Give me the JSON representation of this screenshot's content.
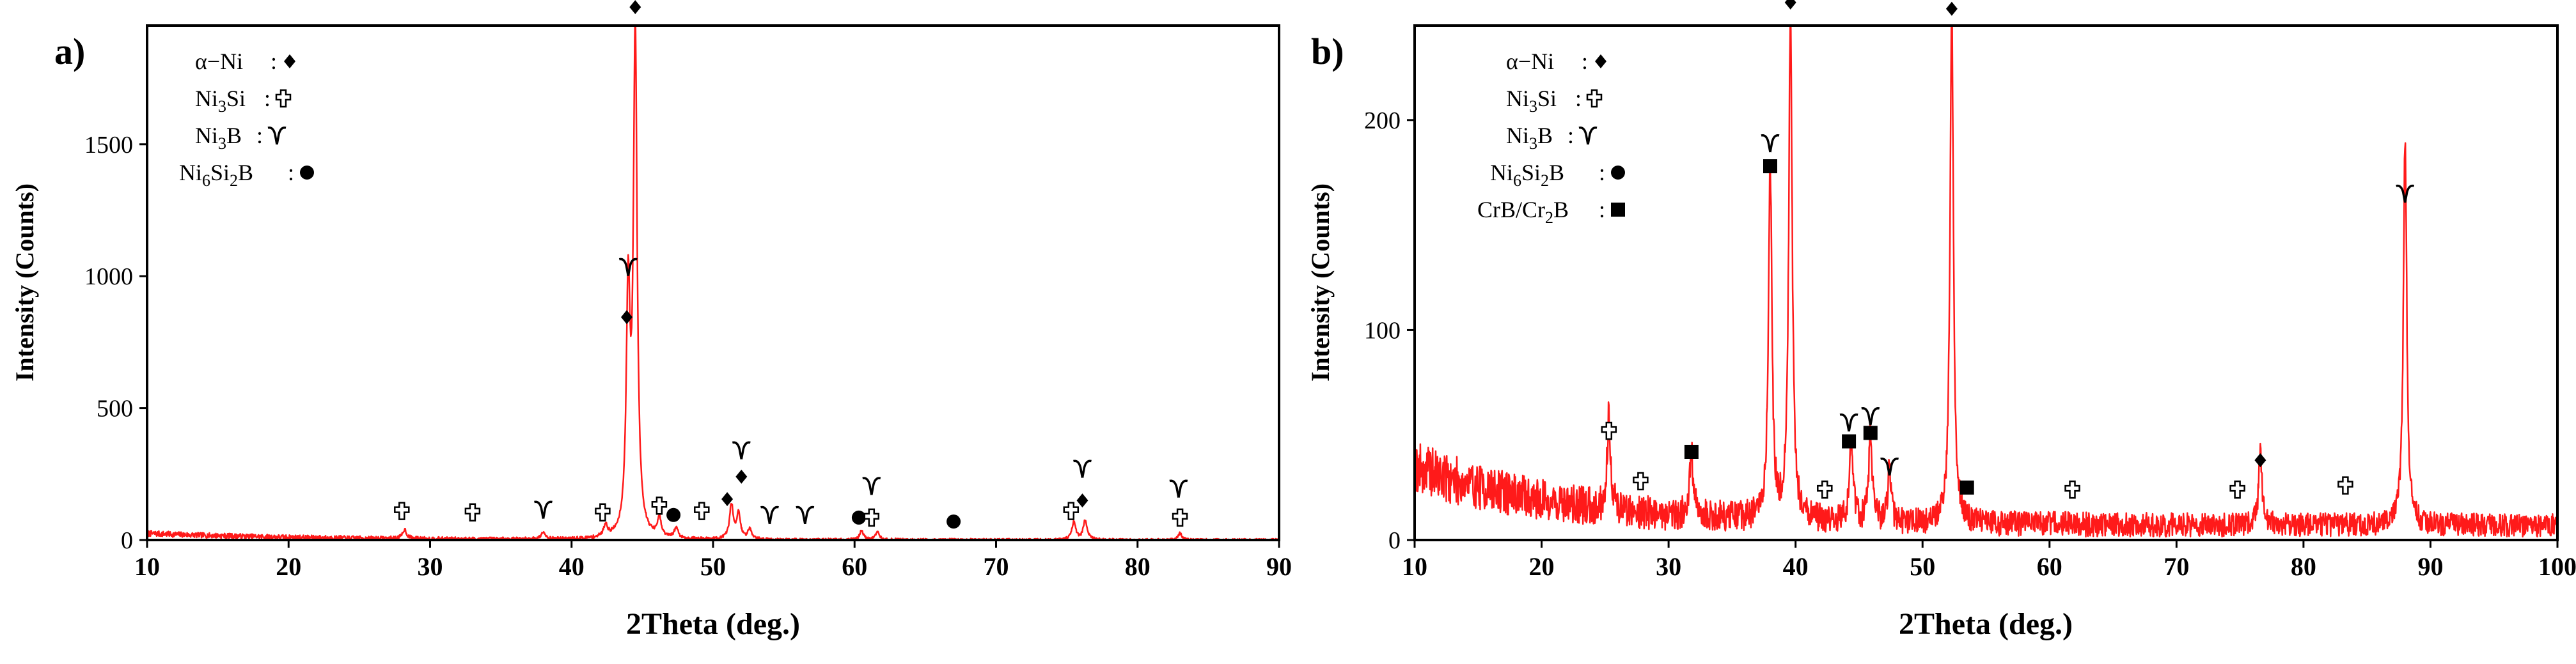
{
  "colors": {
    "pattern": "#ff1a1a",
    "axis": "#000000",
    "marker": "#000000"
  },
  "chart_data": [
    {
      "type": "line",
      "panel_label": "a)",
      "xlabel": "2Theta (deg.)",
      "ylabel": "Intensity (Counts)",
      "xlim": [
        10,
        90
      ],
      "ylim": [
        0,
        1950
      ],
      "xticks": [
        10,
        20,
        30,
        40,
        50,
        60,
        70,
        80,
        90
      ],
      "yticks": [
        0,
        500,
        1000,
        1500
      ],
      "grid": false,
      "background": {
        "baseline": 0,
        "noise": 8,
        "extra_low_angle": 25
      },
      "peaks": [
        {
          "x": 28.2,
          "y": 35
        },
        {
          "x": 38.0,
          "y": 30
        },
        {
          "x": 42.4,
          "y": 45
        },
        {
          "x": 44.0,
          "y": 900
        },
        {
          "x": 44.5,
          "y": 1900
        },
        {
          "x": 46.2,
          "y": 70
        },
        {
          "x": 47.4,
          "y": 40
        },
        {
          "x": 51.3,
          "y": 130
        },
        {
          "x": 51.8,
          "y": 95
        },
        {
          "x": 52.6,
          "y": 40
        },
        {
          "x": 60.5,
          "y": 35
        },
        {
          "x": 61.6,
          "y": 30
        },
        {
          "x": 75.5,
          "y": 70
        },
        {
          "x": 76.3,
          "y": 75
        },
        {
          "x": 83.0,
          "y": 25
        }
      ],
      "legend": {
        "position": "top-left",
        "entries": [
          {
            "phase": "α−Ni",
            "symbol": "diamond"
          },
          {
            "phase": "Ni3Si",
            "symbol": "cross"
          },
          {
            "phase": "Ni3B",
            "symbol": "gamma"
          },
          {
            "phase": "Ni6Si2B",
            "symbol": "circle"
          }
        ]
      },
      "phase_markers": [
        {
          "phase": "α−Ni",
          "symbol": "diamond",
          "x": 44.5,
          "y": 2020
        },
        {
          "phase": "Ni3B",
          "symbol": "gamma",
          "x": 44.0,
          "y": 1035
        },
        {
          "phase": "α−Ni",
          "symbol": "diamond",
          "x": 43.9,
          "y": 845
        },
        {
          "phase": "Ni3Si",
          "symbol": "cross",
          "x": 28.0,
          "y": 110
        },
        {
          "phase": "Ni3Si",
          "symbol": "cross",
          "x": 33.0,
          "y": 105
        },
        {
          "phase": "Ni3B",
          "symbol": "gamma",
          "x": 38.0,
          "y": 115
        },
        {
          "phase": "Ni3Si",
          "symbol": "cross",
          "x": 42.2,
          "y": 105
        },
        {
          "phase": "Ni3Si",
          "symbol": "cross",
          "x": 46.2,
          "y": 130
        },
        {
          "phase": "Ni6Si2B",
          "symbol": "circle",
          "x": 47.2,
          "y": 95
        },
        {
          "phase": "Ni3Si",
          "symbol": "cross",
          "x": 49.2,
          "y": 110
        },
        {
          "phase": "α−Ni",
          "symbol": "diamond",
          "x": 51.0,
          "y": 155
        },
        {
          "phase": "α−Ni",
          "symbol": "diamond",
          "x": 52.0,
          "y": 240
        },
        {
          "phase": "Ni3B",
          "symbol": "gamma",
          "x": 52.0,
          "y": 340
        },
        {
          "phase": "Ni3B",
          "symbol": "gamma",
          "x": 54.0,
          "y": 95
        },
        {
          "phase": "Ni3B",
          "symbol": "gamma",
          "x": 56.5,
          "y": 95
        },
        {
          "phase": "Ni6Si2B",
          "symbol": "circle",
          "x": 60.3,
          "y": 85
        },
        {
          "phase": "Ni3Si",
          "symbol": "cross",
          "x": 61.2,
          "y": 85
        },
        {
          "phase": "Ni3B",
          "symbol": "gamma",
          "x": 61.2,
          "y": 205
        },
        {
          "phase": "Ni6Si2B",
          "symbol": "circle",
          "x": 67.0,
          "y": 70
        },
        {
          "phase": "Ni3Si",
          "symbol": "cross",
          "x": 75.3,
          "y": 110
        },
        {
          "phase": "α−Ni",
          "symbol": "diamond",
          "x": 76.1,
          "y": 150
        },
        {
          "phase": "Ni3B",
          "symbol": "gamma",
          "x": 76.1,
          "y": 270
        },
        {
          "phase": "Ni3B",
          "symbol": "gamma",
          "x": 82.9,
          "y": 195
        },
        {
          "phase": "Ni3Si",
          "symbol": "cross",
          "x": 83.0,
          "y": 85
        }
      ]
    },
    {
      "type": "line",
      "panel_label": "b)",
      "xlabel": "2Theta (deg.)",
      "ylabel": "Intensity (Counts)",
      "xlim": [
        10,
        100
      ],
      "ylim": [
        0,
        245
      ],
      "xticks": [
        10,
        20,
        30,
        40,
        50,
        60,
        70,
        80,
        90,
        100
      ],
      "yticks": [
        0,
        100,
        200
      ],
      "grid": false,
      "background": {
        "baseline": 7,
        "noise": 9,
        "extra_low_angle": 28
      },
      "peaks": [
        {
          "x": 25.3,
          "y": 45
        },
        {
          "x": 31.8,
          "y": 30
        },
        {
          "x": 38.0,
          "y": 170
        },
        {
          "x": 39.6,
          "y": 245
        },
        {
          "x": 44.4,
          "y": 40
        },
        {
          "x": 45.9,
          "y": 42
        },
        {
          "x": 47.4,
          "y": 25
        },
        {
          "x": 52.3,
          "y": 245
        },
        {
          "x": 76.6,
          "y": 35
        },
        {
          "x": 88.0,
          "y": 185
        }
      ],
      "legend": {
        "position": "top-left",
        "entries": [
          {
            "phase": "α−Ni",
            "symbol": "diamond"
          },
          {
            "phase": "Ni3Si",
            "symbol": "cross"
          },
          {
            "phase": "Ni3B",
            "symbol": "gamma"
          },
          {
            "phase": "Ni6Si2B",
            "symbol": "circle"
          },
          {
            "phase": "CrB/Cr2B",
            "symbol": "square"
          }
        ]
      },
      "phase_markers": [
        {
          "phase": "α−Ni",
          "symbol": "diamond",
          "x": 39.6,
          "y": 256
        },
        {
          "phase": "α−Ni",
          "symbol": "diamond",
          "x": 52.3,
          "y": 253
        },
        {
          "phase": "Ni3B",
          "symbol": "gamma",
          "x": 38.0,
          "y": 189
        },
        {
          "phase": "CrB/Cr2B",
          "symbol": "square",
          "x": 38.0,
          "y": 178
        },
        {
          "phase": "Ni3B",
          "symbol": "gamma",
          "x": 88.0,
          "y": 165
        },
        {
          "phase": "Ni3Si",
          "symbol": "cross",
          "x": 25.3,
          "y": 52
        },
        {
          "phase": "Ni3Si",
          "symbol": "cross",
          "x": 27.8,
          "y": 28
        },
        {
          "phase": "CrB/Cr2B",
          "symbol": "square",
          "x": 31.8,
          "y": 42
        },
        {
          "phase": "Ni3Si",
          "symbol": "cross",
          "x": 42.3,
          "y": 24
        },
        {
          "phase": "Ni3B",
          "symbol": "gamma",
          "x": 44.2,
          "y": 56
        },
        {
          "phase": "CrB/Cr2B",
          "symbol": "square",
          "x": 44.2,
          "y": 47
        },
        {
          "phase": "Ni3B",
          "symbol": "gamma",
          "x": 45.9,
          "y": 59
        },
        {
          "phase": "CrB/Cr2B",
          "symbol": "square",
          "x": 45.9,
          "y": 51
        },
        {
          "phase": "Ni3B",
          "symbol": "gamma",
          "x": 47.4,
          "y": 35
        },
        {
          "phase": "CrB/Cr2B",
          "symbol": "square",
          "x": 53.5,
          "y": 25
        },
        {
          "phase": "Ni3Si",
          "symbol": "cross",
          "x": 61.8,
          "y": 24
        },
        {
          "phase": "Ni3Si",
          "symbol": "cross",
          "x": 74.8,
          "y": 24
        },
        {
          "phase": "α−Ni",
          "symbol": "diamond",
          "x": 76.6,
          "y": 38
        },
        {
          "phase": "Ni3Si",
          "symbol": "cross",
          "x": 83.3,
          "y": 26
        }
      ]
    }
  ]
}
